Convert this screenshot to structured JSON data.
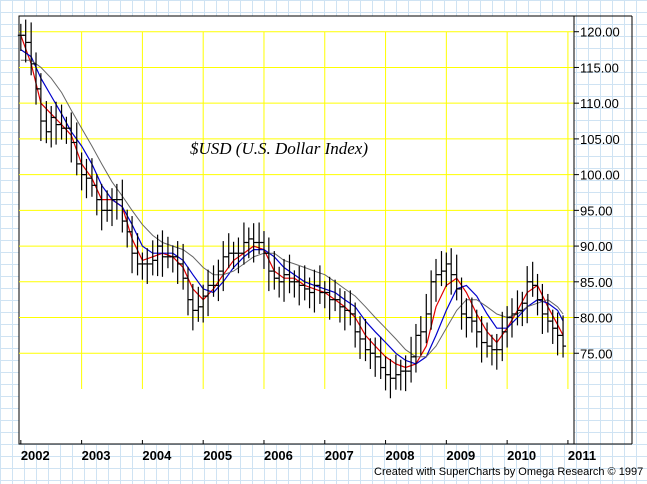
{
  "chart_data": {
    "type": "line",
    "title": "$USD  (U.S. Dollar Index)",
    "credit": "Created with SuperCharts by Omega Research © 1997",
    "x_tick_labels": [
      "2002",
      "2003",
      "2004",
      "2005",
      "2006",
      "2007",
      "2008",
      "2009",
      "2010",
      "2011"
    ],
    "x_ticks": [
      2002,
      2003,
      2004,
      2005,
      2006,
      2007,
      2008,
      2009,
      2010,
      2011
    ],
    "y_tick_labels": [
      "120.00",
      "115.00",
      "110.00",
      "105.00",
      "100.00",
      "95.00",
      "90.00",
      "85.00",
      "80.00",
      "75.00"
    ],
    "y_ticks": [
      120,
      115,
      110,
      105,
      100,
      95,
      90,
      85,
      80,
      75
    ],
    "xlim": [
      2001.97,
      2011.1
    ],
    "ylim": [
      62.3,
      122.2
    ],
    "grid": true,
    "colors": {
      "price": "#000000",
      "ma_short": "#e00000",
      "ma_mid": "#0000cc",
      "ma_long": "#666666",
      "grid": "#ffff00"
    },
    "series": [
      {
        "role": "price-bars",
        "x": [
          2002.0,
          2002.08,
          2002.17,
          2002.25,
          2002.33,
          2002.42,
          2002.5,
          2002.58,
          2002.67,
          2002.75,
          2002.83,
          2002.92,
          2003.0,
          2003.08,
          2003.17,
          2003.25,
          2003.33,
          2003.42,
          2003.5,
          2003.58,
          2003.67,
          2003.75,
          2003.83,
          2003.92,
          2004.0,
          2004.08,
          2004.17,
          2004.25,
          2004.33,
          2004.42,
          2004.5,
          2004.58,
          2004.67,
          2004.75,
          2004.83,
          2004.92,
          2005.0,
          2005.08,
          2005.17,
          2005.25,
          2005.33,
          2005.42,
          2005.5,
          2005.58,
          2005.67,
          2005.75,
          2005.83,
          2005.92,
          2006.0,
          2006.08,
          2006.17,
          2006.25,
          2006.33,
          2006.42,
          2006.5,
          2006.58,
          2006.67,
          2006.75,
          2006.83,
          2006.92,
          2007.0,
          2007.08,
          2007.17,
          2007.25,
          2007.33,
          2007.42,
          2007.5,
          2007.58,
          2007.67,
          2007.75,
          2007.83,
          2007.92,
          2008.0,
          2008.08,
          2008.17,
          2008.25,
          2008.33,
          2008.42,
          2008.5,
          2008.58,
          2008.67,
          2008.75,
          2008.83,
          2008.92,
          2009.0,
          2009.08,
          2009.17,
          2009.25,
          2009.33,
          2009.42,
          2009.5,
          2009.58,
          2009.67,
          2009.75,
          2009.83,
          2009.92,
          2010.0,
          2010.08,
          2010.17,
          2010.25,
          2010.33,
          2010.42,
          2010.5,
          2010.58,
          2010.67,
          2010.75,
          2010.83,
          2010.92
        ],
        "close": [
          119.5,
          118.5,
          115.5,
          112.0,
          107.5,
          106.0,
          108.0,
          107.0,
          106.5,
          106.5,
          104.5,
          101.5,
          100.0,
          99.5,
          98.5,
          96.5,
          95.0,
          95.0,
          96.5,
          96.5,
          93.5,
          92.0,
          89.0,
          87.5,
          87.5,
          87.5,
          88.0,
          90.0,
          88.5,
          88.5,
          88.5,
          87.5,
          85.5,
          82.5,
          81.0,
          81.5,
          83.0,
          84.5,
          84.5,
          86.5,
          88.5,
          89.0,
          89.0,
          89.0,
          90.5,
          91.0,
          90.5,
          90.5,
          89.0,
          86.5,
          85.5,
          85.0,
          86.0,
          85.0,
          85.0,
          84.5,
          84.0,
          83.5,
          84.5,
          83.5,
          83.5,
          82.5,
          82.5,
          81.5,
          81.0,
          80.5,
          78.0,
          77.0,
          75.5,
          75.0,
          74.5,
          73.0,
          72.0,
          71.5,
          72.0,
          72.5,
          72.5,
          74.5,
          77.5,
          78.0,
          80.5,
          85.0,
          86.0,
          86.5,
          87.5,
          86.0,
          84.0,
          80.5,
          80.0,
          79.5,
          78.0,
          76.5,
          76.0,
          75.5,
          75.5,
          78.0,
          80.0,
          80.5,
          81.0,
          82.0,
          85.0,
          84.5,
          82.5,
          80.5,
          79.5,
          78.5,
          77.5,
          76.0
        ]
      },
      {
        "role": "ma-short",
        "x": [
          2002.0,
          2002.17,
          2002.33,
          2002.5,
          2002.67,
          2002.83,
          2003.0,
          2003.17,
          2003.33,
          2003.5,
          2003.67,
          2003.83,
          2004.0,
          2004.17,
          2004.33,
          2004.5,
          2004.67,
          2004.83,
          2005.0,
          2005.17,
          2005.33,
          2005.5,
          2005.67,
          2005.83,
          2006.0,
          2006.17,
          2006.33,
          2006.5,
          2006.67,
          2006.83,
          2007.0,
          2007.17,
          2007.33,
          2007.5,
          2007.67,
          2007.83,
          2008.0,
          2008.17,
          2008.33,
          2008.5,
          2008.67,
          2008.83,
          2009.0,
          2009.17,
          2009.33,
          2009.5,
          2009.67,
          2009.83,
          2010.0,
          2010.17,
          2010.33,
          2010.5,
          2010.67,
          2010.83,
          2010.92
        ],
        "y": [
          119.5,
          115.5,
          110.0,
          108.5,
          107.0,
          105.5,
          101.5,
          99.5,
          96.5,
          96.5,
          95.5,
          91.0,
          88.0,
          88.5,
          89.0,
          88.5,
          87.0,
          84.0,
          82.5,
          84.0,
          86.0,
          88.0,
          89.0,
          90.0,
          89.5,
          86.5,
          85.5,
          85.5,
          84.5,
          84.0,
          83.5,
          82.5,
          81.5,
          80.0,
          77.5,
          76.0,
          74.5,
          73.5,
          73.0,
          73.5,
          76.0,
          81.5,
          84.5,
          85.5,
          83.5,
          80.5,
          78.0,
          76.5,
          78.5,
          81.0,
          83.5,
          84.5,
          81.5,
          79.0,
          77.5
        ]
      },
      {
        "role": "ma-mid",
        "x": [
          2002.0,
          2002.17,
          2002.33,
          2002.5,
          2002.67,
          2002.83,
          2003.0,
          2003.17,
          2003.33,
          2003.5,
          2003.67,
          2003.83,
          2004.0,
          2004.17,
          2004.33,
          2004.5,
          2004.67,
          2004.83,
          2005.0,
          2005.17,
          2005.33,
          2005.5,
          2005.67,
          2005.83,
          2006.0,
          2006.17,
          2006.33,
          2006.5,
          2006.67,
          2006.83,
          2007.0,
          2007.17,
          2007.33,
          2007.5,
          2007.67,
          2007.83,
          2008.0,
          2008.17,
          2008.33,
          2008.5,
          2008.67,
          2008.83,
          2009.0,
          2009.17,
          2009.33,
          2009.5,
          2009.67,
          2009.83,
          2010.0,
          2010.17,
          2010.33,
          2010.5,
          2010.67,
          2010.83,
          2010.92
        ],
        "y": [
          117.5,
          116.5,
          113.5,
          111.0,
          108.5,
          106.0,
          104.0,
          101.5,
          98.5,
          96.5,
          95.5,
          93.0,
          90.0,
          89.0,
          89.0,
          89.0,
          88.0,
          86.0,
          84.0,
          83.5,
          85.0,
          87.0,
          88.5,
          89.5,
          89.5,
          88.5,
          87.0,
          86.0,
          85.0,
          84.5,
          84.0,
          83.5,
          82.5,
          81.5,
          79.5,
          78.0,
          76.5,
          75.0,
          74.0,
          73.5,
          74.5,
          77.5,
          81.0,
          84.0,
          84.5,
          83.0,
          80.5,
          78.5,
          78.5,
          80.0,
          81.5,
          82.5,
          82.0,
          81.0,
          79.5
        ]
      },
      {
        "role": "ma-long",
        "x": [
          2002.0,
          2002.17,
          2002.33,
          2002.5,
          2002.67,
          2002.83,
          2003.0,
          2003.17,
          2003.33,
          2003.5,
          2003.67,
          2003.83,
          2004.0,
          2004.17,
          2004.33,
          2004.5,
          2004.67,
          2004.83,
          2005.0,
          2005.17,
          2005.33,
          2005.5,
          2005.67,
          2005.83,
          2006.0,
          2006.17,
          2006.33,
          2006.5,
          2006.67,
          2006.83,
          2007.0,
          2007.17,
          2007.33,
          2007.5,
          2007.67,
          2007.83,
          2008.0,
          2008.17,
          2008.33,
          2008.5,
          2008.67,
          2008.83,
          2009.0,
          2009.17,
          2009.33,
          2009.5,
          2009.67,
          2009.83,
          2010.0,
          2010.17,
          2010.33,
          2010.5,
          2010.67,
          2010.83,
          2010.92
        ],
        "y": [
          116.0,
          116.0,
          115.0,
          113.5,
          111.5,
          109.0,
          106.5,
          104.0,
          101.5,
          99.0,
          97.0,
          95.0,
          93.0,
          91.5,
          90.5,
          90.0,
          89.5,
          88.5,
          87.0,
          86.0,
          86.0,
          86.5,
          87.5,
          88.5,
          89.0,
          89.0,
          88.0,
          87.5,
          87.0,
          86.5,
          86.0,
          85.0,
          84.0,
          83.0,
          81.5,
          80.0,
          78.5,
          77.0,
          75.5,
          74.5,
          74.5,
          76.0,
          78.5,
          81.0,
          82.5,
          82.5,
          81.5,
          80.5,
          80.0,
          80.5,
          81.5,
          82.0,
          82.5,
          81.5,
          80.5
        ]
      }
    ]
  }
}
